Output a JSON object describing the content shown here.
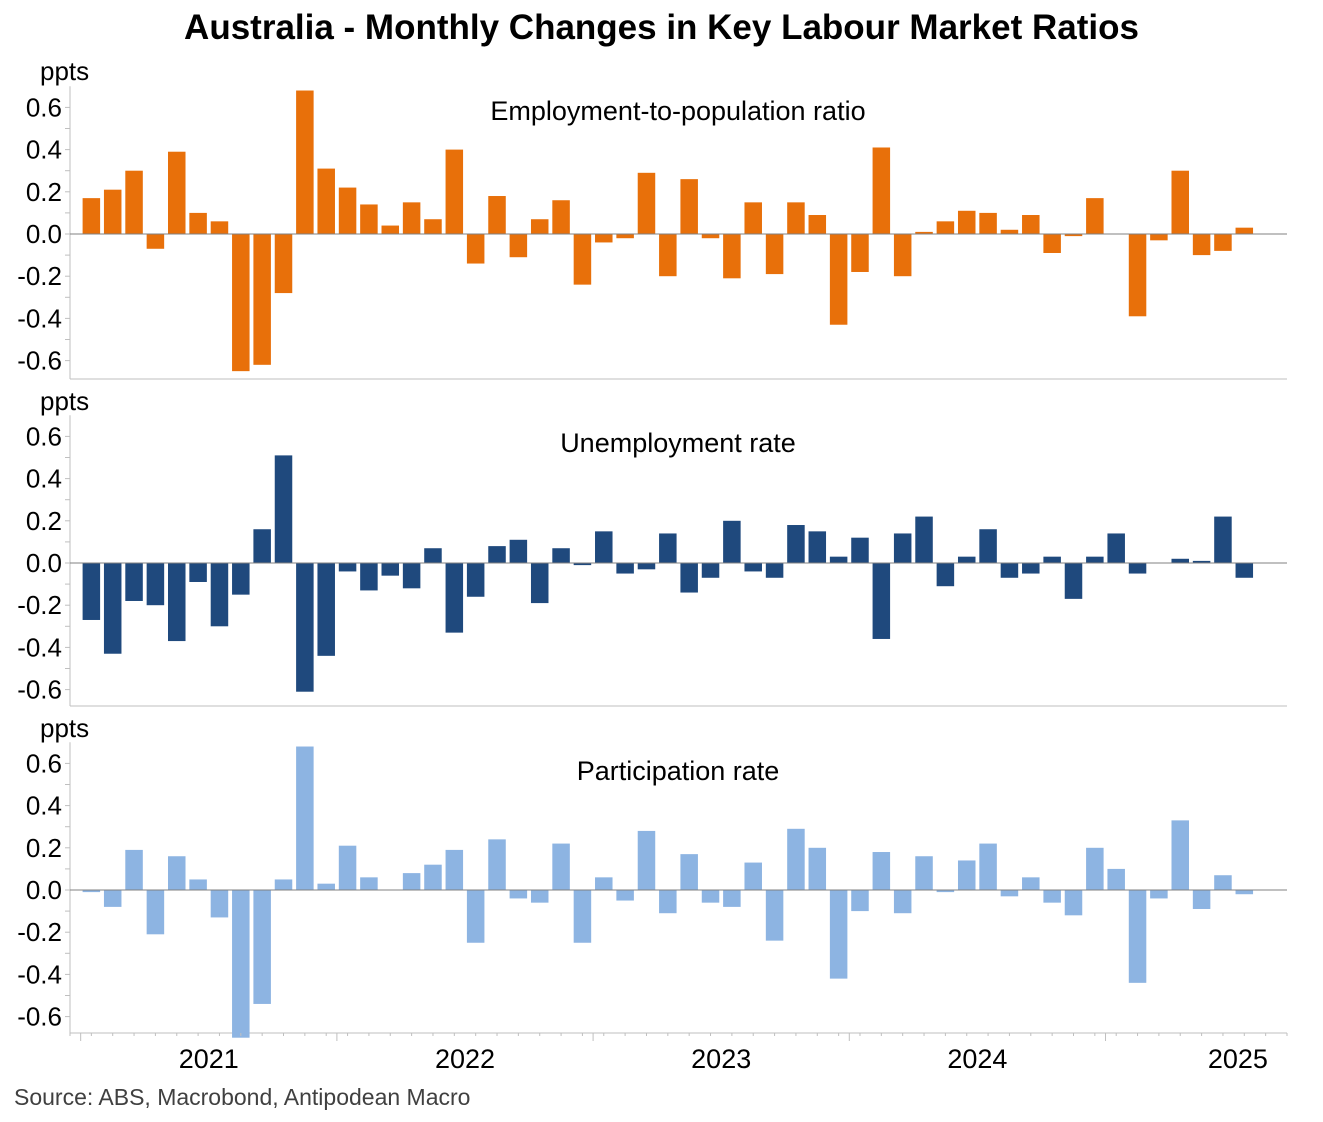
{
  "title": "Australia - Monthly Changes in Key Labour Market Ratios",
  "source": "Source: ABS, Macrobond, Antipodean Macro",
  "colors": {
    "employment": "#e8700a",
    "unemployment": "#1f497d",
    "participation": "#8db4e2",
    "axis": "#bfbfbf",
    "zero_line": "#808080",
    "text": "#000000"
  },
  "x_axis": {
    "period_start": "2020-12",
    "period_end": "2025-04",
    "year_labels": [
      "2021",
      "2022",
      "2023",
      "2024",
      "2025"
    ]
  },
  "chart_data": [
    {
      "type": "bar",
      "title": "Employment-to-population ratio",
      "ylabel": "ppts",
      "ylim": [
        -0.68,
        0.68
      ],
      "yticks": [
        "0.6",
        "0.4",
        "0.2",
        "0.0",
        "-0.2",
        "-0.4",
        "-0.6"
      ],
      "start": "2021-01",
      "values": [
        0.17,
        0.21,
        0.3,
        -0.07,
        0.39,
        0.1,
        0.06,
        -0.65,
        -0.62,
        -0.28,
        0.68,
        0.31,
        0.22,
        0.14,
        0.04,
        0.15,
        0.07,
        0.4,
        -0.14,
        0.18,
        -0.11,
        0.07,
        0.16,
        -0.24,
        -0.04,
        -0.02,
        0.29,
        -0.2,
        0.26,
        -0.02,
        -0.21,
        0.15,
        -0.19,
        0.15,
        0.09,
        -0.43,
        -0.18,
        0.41,
        -0.2,
        0.01,
        0.06,
        0.11,
        0.1,
        0.02,
        0.09,
        -0.09,
        -0.01,
        0.17,
        0.0,
        -0.39,
        -0.03,
        0.3,
        -0.1,
        -0.08,
        0.03
      ]
    },
    {
      "type": "bar",
      "title": "Unemployment rate",
      "ylabel": "ppts",
      "ylim": [
        -0.68,
        0.68
      ],
      "yticks": [
        "0.6",
        "0.4",
        "0.2",
        "0.0",
        "-0.2",
        "-0.4",
        "-0.6"
      ],
      "start": "2021-01",
      "values": [
        -0.27,
        -0.43,
        -0.18,
        -0.2,
        -0.37,
        -0.09,
        -0.3,
        -0.15,
        0.16,
        0.51,
        -0.61,
        -0.44,
        -0.04,
        -0.13,
        -0.06,
        -0.12,
        0.07,
        -0.33,
        -0.16,
        0.08,
        0.11,
        -0.19,
        0.07,
        -0.01,
        0.15,
        -0.05,
        -0.03,
        0.14,
        -0.14,
        -0.07,
        0.2,
        -0.04,
        -0.07,
        0.18,
        0.15,
        0.03,
        0.12,
        -0.36,
        0.14,
        0.22,
        -0.11,
        0.03,
        0.16,
        -0.07,
        -0.05,
        0.03,
        -0.17,
        0.03,
        0.14,
        -0.05,
        0.0,
        0.02,
        0.01,
        0.22,
        -0.07
      ]
    },
    {
      "type": "bar",
      "title": "Participation rate",
      "ylabel": "ppts",
      "ylim": [
        -0.68,
        0.68
      ],
      "yticks": [
        "0.6",
        "0.4",
        "0.2",
        "0.0",
        "-0.2",
        "-0.4",
        "-0.6"
      ],
      "start": "2021-01",
      "values": [
        -0.01,
        -0.08,
        0.19,
        -0.21,
        0.16,
        0.05,
        -0.13,
        -0.7,
        -0.54,
        0.05,
        0.68,
        0.03,
        0.21,
        0.06,
        0.0,
        0.08,
        0.12,
        0.19,
        -0.25,
        0.24,
        -0.04,
        -0.06,
        0.22,
        -0.25,
        0.06,
        -0.05,
        0.28,
        -0.11,
        0.17,
        -0.06,
        -0.08,
        0.13,
        -0.24,
        0.29,
        0.2,
        -0.42,
        -0.1,
        0.18,
        -0.11,
        0.16,
        -0.01,
        0.14,
        0.22,
        -0.03,
        0.06,
        -0.06,
        -0.12,
        0.2,
        0.1,
        -0.44,
        -0.04,
        0.33,
        -0.09,
        0.07,
        -0.02
      ]
    }
  ]
}
